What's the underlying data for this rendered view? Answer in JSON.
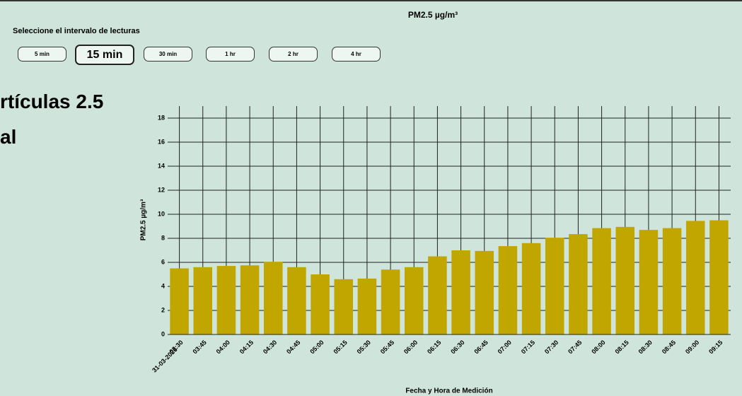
{
  "controls": {
    "prompt": "Seleccione el intervalo de lecturas",
    "buttons": [
      "5 min",
      "15 min",
      "30 min",
      "1 hr",
      "2 hr",
      "4 hr"
    ],
    "selected": 1
  },
  "heading": [
    "rtículas 2.5",
    "al"
  ],
  "chart_data": {
    "type": "bar",
    "title": "PM2.5 µg/m³",
    "x_label": "Fecha y Hora de Medición",
    "y_label": "PM2.5 µg/m³",
    "date_label": "31-03-2026",
    "categories": [
      "03:30",
      "03:45",
      "04:00",
      "04:15",
      "04:30",
      "04:45",
      "05:00",
      "05:15",
      "05:30",
      "05:45",
      "06:00",
      "06:15",
      "06:30",
      "06:45",
      "07:00",
      "07:15",
      "07:30",
      "07:45",
      "08:00",
      "08:15",
      "08:30",
      "08:45",
      "09:00",
      "09:15"
    ],
    "values": [
      5.5,
      5.6,
      5.7,
      5.75,
      6.05,
      5.6,
      5.0,
      4.6,
      4.65,
      5.4,
      5.6,
      6.5,
      7.0,
      6.95,
      7.35,
      7.6,
      8.05,
      8.35,
      8.85,
      8.95,
      8.7,
      8.85,
      9.45,
      9.5
    ],
    "color": "#c2a600",
    "ylim": [
      0,
      19
    ],
    "yticks": [
      0,
      2,
      4,
      6,
      8,
      10,
      12,
      14,
      16,
      18
    ],
    "grid": true
  }
}
